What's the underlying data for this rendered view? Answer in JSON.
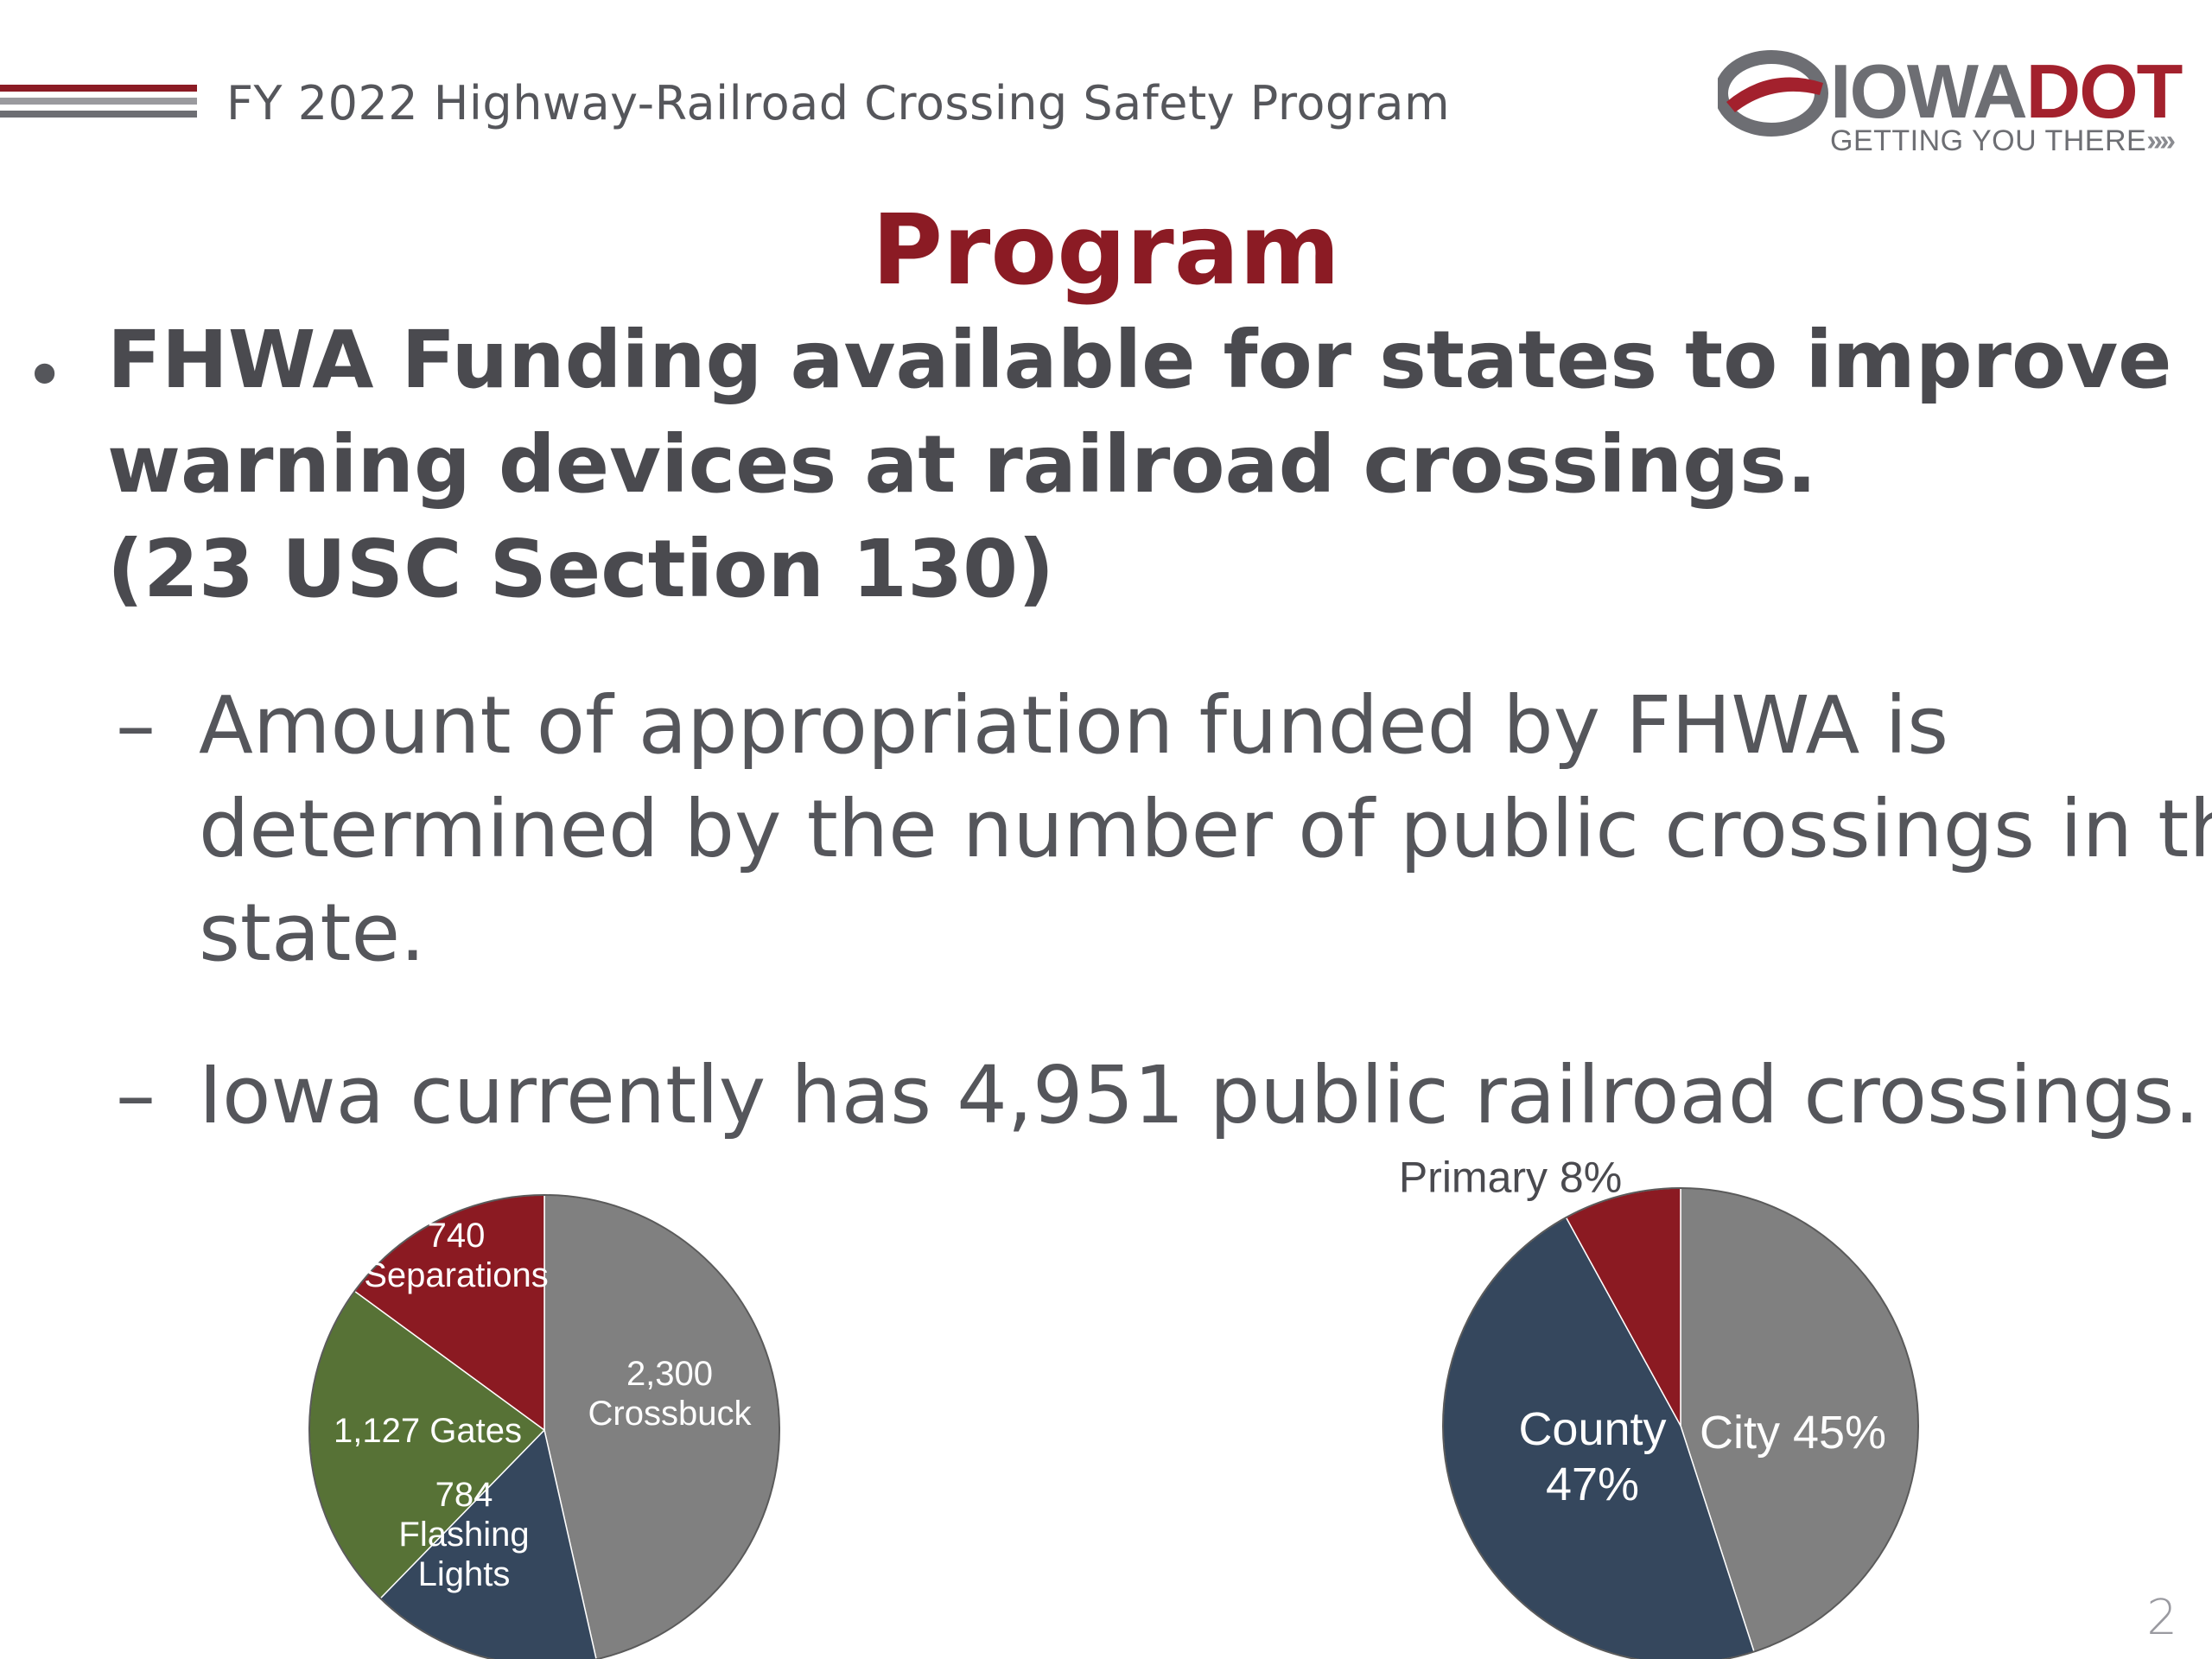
{
  "header": {
    "title": "FY 2022 Highway-Railroad Crossing Safety Program",
    "logo": {
      "word_iowa": "IOWA",
      "word_dot": "DOT",
      "tagline": "GETTING YOU THERE"
    }
  },
  "slide": {
    "title": "Program",
    "bullet": {
      "lines": [
        "FHWA Funding available for states to improve",
        "warning devices at railroad crossings.",
        "(23 USC Section 130)"
      ]
    },
    "subbullets": [
      {
        "dash": "–",
        "lines": [
          "Amount of appropriation funded by FHWA is",
          "determined by the number of public crossings in the",
          "state."
        ]
      },
      {
        "dash": "–",
        "lines": [
          "Iowa currently has 4,951 public railroad crossings."
        ]
      }
    ],
    "page_number": "2"
  },
  "colors": {
    "accent_red": "#8b1b24",
    "slice_gray": "#808080",
    "slice_red": "#8b1a22",
    "slice_green": "#577236",
    "slice_navy": "#35475d"
  },
  "chart_data": [
    {
      "type": "pie",
      "title": "",
      "slices": [
        {
          "label_lines": [
            "2,300",
            "Crossbuck"
          ],
          "value": 2300,
          "color": "#808080"
        },
        {
          "label_lines": [
            "784",
            "Flashing",
            "Lights"
          ],
          "value": 784,
          "color": "#35475d"
        },
        {
          "label_lines": [
            "1,127 Gates"
          ],
          "value": 1127,
          "color": "#577236"
        },
        {
          "label_lines": [
            "740",
            "Separations"
          ],
          "value": 740,
          "color": "#8b1a22"
        }
      ]
    },
    {
      "type": "pie",
      "title": "",
      "slices": [
        {
          "label_lines": [
            "City 45%"
          ],
          "value": 45,
          "color": "#808080"
        },
        {
          "label_lines": [
            "County",
            "47%"
          ],
          "value": 47,
          "color": "#35475d"
        },
        {
          "label_lines": [
            "Primary 8%"
          ],
          "value": 8,
          "color": "#8b1a22"
        }
      ]
    }
  ]
}
